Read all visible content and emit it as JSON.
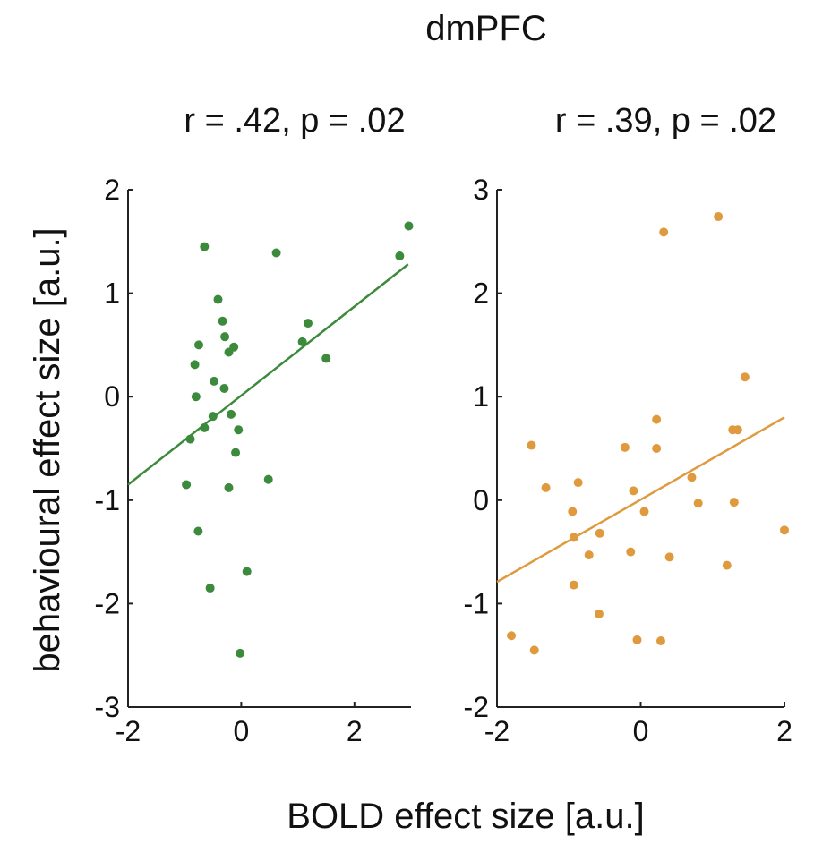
{
  "figure": {
    "title": "dmPFC",
    "xlabel": "BOLD effect size [a.u.]",
    "ylabel": "behavioural effect size [a.u.]"
  },
  "chart_data": [
    {
      "type": "scatter",
      "title": "r = .42, p = .02",
      "color": "#3c8a3c",
      "xlim": [
        -2,
        3
      ],
      "ylim": [
        -3,
        2
      ],
      "xticks": [
        "-2",
        "0",
        "2"
      ],
      "xtick_values": [
        -2,
        0,
        2
      ],
      "yticks": [
        "-3",
        "-2",
        "-1",
        "0",
        "1",
        "2"
      ],
      "ytick_values": [
        -3,
        -2,
        -1,
        0,
        1,
        2
      ],
      "grid": false,
      "points": [
        {
          "x": -0.65,
          "y": 1.45
        },
        {
          "x": 0.62,
          "y": 1.39
        },
        {
          "x": -0.41,
          "y": 0.94
        },
        {
          "x": -0.33,
          "y": 0.73
        },
        {
          "x": -0.29,
          "y": 0.58
        },
        {
          "x": -0.22,
          "y": 0.43
        },
        {
          "x": -0.13,
          "y": 0.48
        },
        {
          "x": -0.75,
          "y": 0.5
        },
        {
          "x": -0.82,
          "y": 0.31
        },
        {
          "x": -0.8,
          "y": 0.0
        },
        {
          "x": -0.48,
          "y": 0.15
        },
        {
          "x": -0.3,
          "y": 0.08
        },
        {
          "x": -0.5,
          "y": -0.19
        },
        {
          "x": -0.18,
          "y": -0.17
        },
        {
          "x": -0.65,
          "y": -0.3
        },
        {
          "x": -0.05,
          "y": -0.32
        },
        {
          "x": -0.9,
          "y": -0.41
        },
        {
          "x": -0.1,
          "y": -0.54
        },
        {
          "x": -0.97,
          "y": -0.85
        },
        {
          "x": -0.22,
          "y": -0.88
        },
        {
          "x": 0.48,
          "y": -0.8
        },
        {
          "x": -0.76,
          "y": -1.3
        },
        {
          "x": 0.1,
          "y": -1.69
        },
        {
          "x": -0.55,
          "y": -1.85
        },
        {
          "x": -0.02,
          "y": -2.48
        },
        {
          "x": 1.08,
          "y": 0.53
        },
        {
          "x": 1.18,
          "y": 0.71
        },
        {
          "x": 1.5,
          "y": 0.37
        },
        {
          "x": 2.8,
          "y": 1.36
        },
        {
          "x": 2.96,
          "y": 1.65
        }
      ],
      "fit_line": {
        "x": [
          -2,
          2.95
        ],
        "y": [
          -0.85,
          1.28
        ]
      }
    },
    {
      "type": "scatter",
      "title": "r = .39, p = .02",
      "color": "#e09a3e",
      "xlim": [
        -2,
        2
      ],
      "ylim": [
        -2,
        3
      ],
      "xticks": [
        "-2",
        "0",
        "2"
      ],
      "xtick_values": [
        -2,
        0,
        2
      ],
      "yticks": [
        "-2",
        "-1",
        "0",
        "1",
        "2",
        "3"
      ],
      "ytick_values": [
        -2,
        -1,
        0,
        1,
        2,
        3
      ],
      "grid": false,
      "points": [
        {
          "x": 1.08,
          "y": 2.74
        },
        {
          "x": 0.32,
          "y": 2.59
        },
        {
          "x": 1.45,
          "y": 1.19
        },
        {
          "x": 0.22,
          "y": 0.78
        },
        {
          "x": 1.28,
          "y": 0.68
        },
        {
          "x": 1.35,
          "y": 0.68
        },
        {
          "x": -1.52,
          "y": 0.53
        },
        {
          "x": -0.22,
          "y": 0.51
        },
        {
          "x": 0.22,
          "y": 0.5
        },
        {
          "x": -1.32,
          "y": 0.12
        },
        {
          "x": -0.87,
          "y": 0.17
        },
        {
          "x": -0.1,
          "y": 0.09
        },
        {
          "x": 0.71,
          "y": 0.22
        },
        {
          "x": -0.95,
          "y": -0.11
        },
        {
          "x": 0.05,
          "y": -0.11
        },
        {
          "x": 0.8,
          "y": -0.03
        },
        {
          "x": 1.3,
          "y": -0.02
        },
        {
          "x": 2.0,
          "y": -0.29
        },
        {
          "x": -0.57,
          "y": -0.32
        },
        {
          "x": -0.93,
          "y": -0.36
        },
        {
          "x": -0.72,
          "y": -0.53
        },
        {
          "x": -0.14,
          "y": -0.5
        },
        {
          "x": 0.4,
          "y": -0.55
        },
        {
          "x": 1.2,
          "y": -0.63
        },
        {
          "x": -0.93,
          "y": -0.82
        },
        {
          "x": -0.58,
          "y": -1.1
        },
        {
          "x": -1.8,
          "y": -1.31
        },
        {
          "x": -1.48,
          "y": -1.45
        },
        {
          "x": -0.05,
          "y": -1.35
        },
        {
          "x": 0.28,
          "y": -1.36
        }
      ],
      "fit_line": {
        "x": [
          -2,
          2
        ],
        "y": [
          -0.79,
          0.8
        ]
      }
    }
  ]
}
